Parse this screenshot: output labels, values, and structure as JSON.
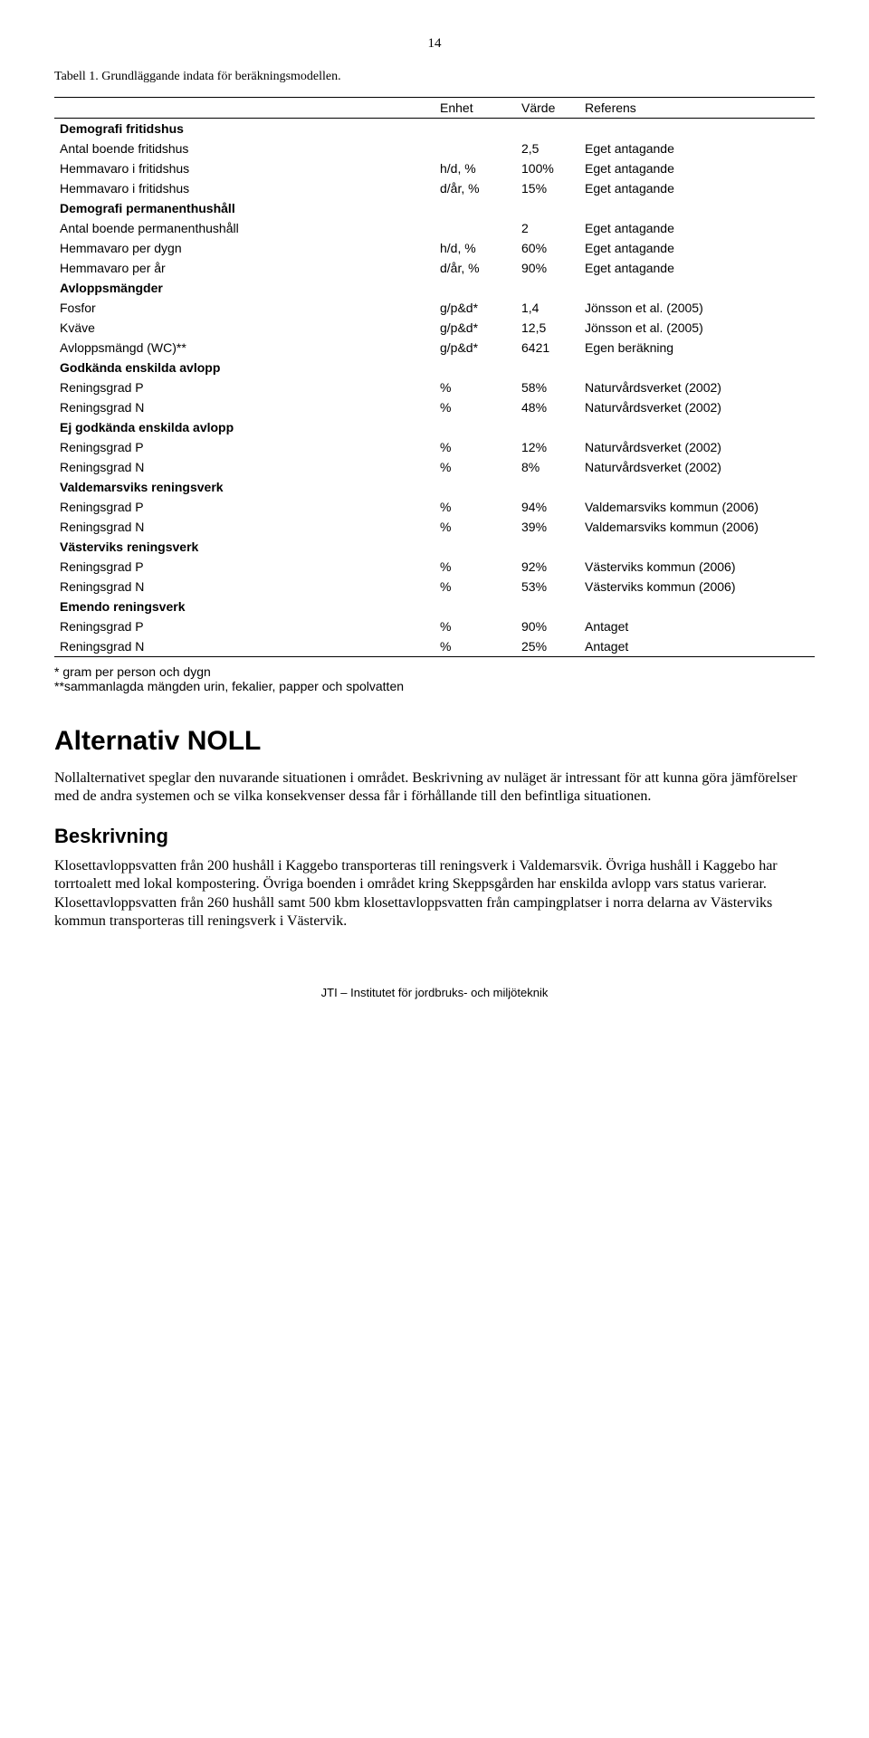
{
  "page_number": "14",
  "caption": "Tabell 1. Grundläggande indata för beräkningsmodellen.",
  "table": {
    "headers": {
      "c0": "",
      "c1": "Enhet",
      "c2": "Värde",
      "c3": "Referens"
    },
    "sections": [
      {
        "title": "Demografi fritidshus",
        "rows": [
          {
            "label": "Antal boende fritidshus",
            "enhet": "",
            "varde": "2,5",
            "ref": "Eget antagande"
          },
          {
            "label": "Hemmavaro i fritidshus",
            "enhet": "h/d, %",
            "varde": "100%",
            "ref": "Eget antagande"
          },
          {
            "label": "Hemmavaro i fritidshus",
            "enhet": "d/år, %",
            "varde": "15%",
            "ref": "Eget antagande"
          }
        ]
      },
      {
        "title": "Demografi permanenthushåll",
        "rows": [
          {
            "label": "Antal boende permanenthushåll",
            "enhet": "",
            "varde": "2",
            "ref": "Eget antagande"
          },
          {
            "label": "Hemmavaro per dygn",
            "enhet": "h/d, %",
            "varde": "60%",
            "ref": "Eget antagande"
          },
          {
            "label": "Hemmavaro per år",
            "enhet": "d/år, %",
            "varde": "90%",
            "ref": "Eget antagande"
          }
        ]
      },
      {
        "title": "Avloppsmängder",
        "rows": [
          {
            "label": "Fosfor",
            "enhet": "g/p&d*",
            "varde": "1,4",
            "ref": "Jönsson et al. (2005)"
          },
          {
            "label": "Kväve",
            "enhet": "g/p&d*",
            "varde": "12,5",
            "ref": "Jönsson et al. (2005)"
          },
          {
            "label": "Avloppsmängd (WC)**",
            "enhet": "g/p&d*",
            "varde": "6421",
            "ref": "Egen beräkning"
          }
        ]
      },
      {
        "title": "Godkända enskilda avlopp",
        "rows": [
          {
            "label": "Reningsgrad P",
            "enhet": "%",
            "varde": "58%",
            "ref": "Naturvårdsverket (2002)"
          },
          {
            "label": "Reningsgrad N",
            "enhet": "%",
            "varde": "48%",
            "ref": "Naturvårdsverket (2002)"
          }
        ]
      },
      {
        "title": "Ej godkända enskilda avlopp",
        "rows": [
          {
            "label": "Reningsgrad P",
            "enhet": "%",
            "varde": "12%",
            "ref": "Naturvårdsverket (2002)"
          },
          {
            "label": "Reningsgrad N",
            "enhet": "%",
            "varde": "8%",
            "ref": "Naturvårdsverket (2002)"
          }
        ]
      },
      {
        "title": "Valdemarsviks reningsverk",
        "rows": [
          {
            "label": "Reningsgrad P",
            "enhet": "%",
            "varde": "94%",
            "ref": "Valdemarsviks kommun (2006)"
          },
          {
            "label": "Reningsgrad N",
            "enhet": "%",
            "varde": "39%",
            "ref": "Valdemarsviks kommun (2006)"
          }
        ]
      },
      {
        "title": "Västerviks reningsverk",
        "rows": [
          {
            "label": "Reningsgrad P",
            "enhet": "%",
            "varde": "92%",
            "ref": "Västerviks kommun (2006)"
          },
          {
            "label": "Reningsgrad N",
            "enhet": "%",
            "varde": "53%",
            "ref": "Västerviks kommun (2006)"
          }
        ]
      },
      {
        "title": "Emendo reningsverk",
        "rows": [
          {
            "label": "Reningsgrad P",
            "enhet": "%",
            "varde": "90%",
            "ref": "Antaget"
          },
          {
            "label": "Reningsgrad N",
            "enhet": "%",
            "varde": "25%",
            "ref": "Antaget"
          }
        ]
      }
    ]
  },
  "footnotes": {
    "l1": "* gram per person och dygn",
    "l2": "**sammanlagda mängden urin, fekalier, papper och spolvatten"
  },
  "h1": "Alternativ NOLL",
  "para1": "Nollalternativet speglar den nuvarande situationen i området. Beskrivning av nuläget är intressant för att kunna göra jämförelser med de andra systemen och se vilka konsekvenser dessa får i förhållande till den befintliga situationen.",
  "h2": "Beskrivning",
  "para2": "Klosettavloppsvatten från 200 hushåll i Kaggebo transporteras till reningsverk i Valdemarsvik. Övriga hushåll i Kaggebo har torrtoalett med lokal kompostering. Övriga boenden i området kring Skeppsgården har enskilda avlopp vars status varierar. Klosettavloppsvatten från 260 hushåll samt 500 kbm klosettavlopps­vatten från campingplatser i norra delarna av Västerviks kommun transporteras till reningsverk i Västervik.",
  "footer": "JTI – Institutet för jordbruks- och miljöteknik"
}
